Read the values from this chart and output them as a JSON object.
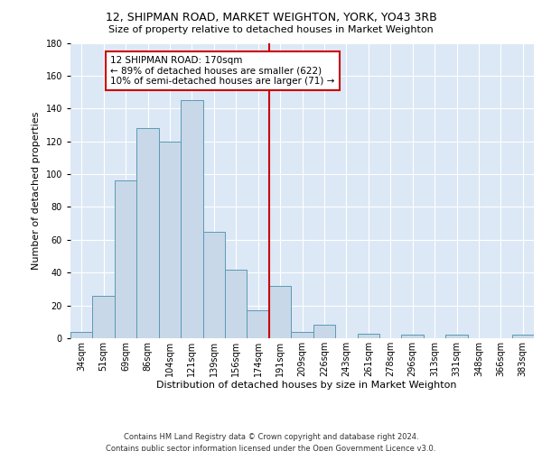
{
  "title": "12, SHIPMAN ROAD, MARKET WEIGHTON, YORK, YO43 3RB",
  "subtitle": "Size of property relative to detached houses in Market Weighton",
  "xlabel": "Distribution of detached houses by size in Market Weighton",
  "ylabel": "Number of detached properties",
  "bar_labels": [
    "34sqm",
    "51sqm",
    "69sqm",
    "86sqm",
    "104sqm",
    "121sqm",
    "139sqm",
    "156sqm",
    "174sqm",
    "191sqm",
    "209sqm",
    "226sqm",
    "243sqm",
    "261sqm",
    "278sqm",
    "296sqm",
    "313sqm",
    "331sqm",
    "348sqm",
    "366sqm",
    "383sqm"
  ],
  "bar_values": [
    4,
    26,
    96,
    128,
    120,
    145,
    65,
    42,
    17,
    32,
    4,
    8,
    0,
    3,
    0,
    2,
    0,
    2,
    0,
    0,
    2
  ],
  "bar_color": "#c8d8e8",
  "bar_edge_color": "#5a9ab5",
  "vline_x_idx": 8.5,
  "vline_color": "#cc0000",
  "annotation_text": "12 SHIPMAN ROAD: 170sqm\n← 89% of detached houses are smaller (622)\n10% of semi-detached houses are larger (71) →",
  "annotation_box_color": "#ffffff",
  "annotation_box_edge": "#cc0000",
  "ylim": [
    0,
    180
  ],
  "yticks": [
    0,
    20,
    40,
    60,
    80,
    100,
    120,
    140,
    160,
    180
  ],
  "background_color": "#dce8f5",
  "grid_color": "#ffffff",
  "footer": "Contains HM Land Registry data © Crown copyright and database right 2024.\nContains public sector information licensed under the Open Government Licence v3.0.",
  "title_fontsize": 9,
  "subtitle_fontsize": 8,
  "ylabel_fontsize": 8,
  "xlabel_fontsize": 8,
  "tick_fontsize": 7,
  "footer_fontsize": 6,
  "annotation_fontsize": 7.5
}
